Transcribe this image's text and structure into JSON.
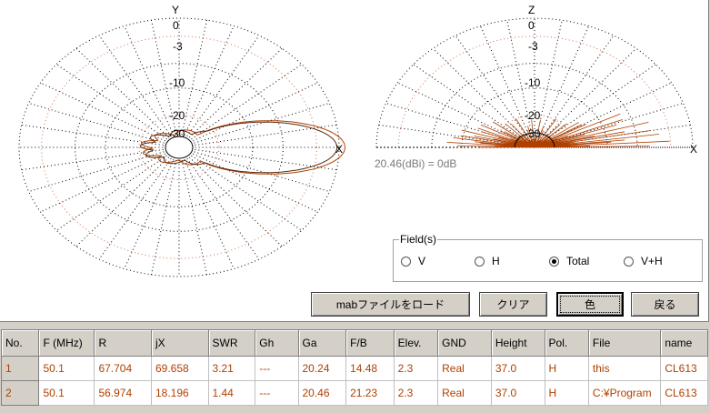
{
  "plots": {
    "left": {
      "axis_top": "Y",
      "axis_right": "X",
      "ticks": [
        "0",
        "-3",
        "-10",
        "-20",
        "-30"
      ]
    },
    "right": {
      "axis_top": "Z",
      "axis_right": "X",
      "ticks": [
        "0",
        "-3",
        "-10",
        "-20",
        "-30"
      ]
    },
    "reference_note": "20.46(dBi) = 0dB",
    "trace_color": "#b04000"
  },
  "field": {
    "legend": "Field(s)",
    "options": [
      {
        "label": "V",
        "selected": false
      },
      {
        "label": "H",
        "selected": false
      },
      {
        "label": "Total",
        "selected": true
      },
      {
        "label": "V+H",
        "selected": false
      }
    ]
  },
  "buttons": {
    "load": "mabファイルをロード",
    "clear": "クリア",
    "color": "色",
    "back": "戻る"
  },
  "table": {
    "columns": [
      "No.",
      "F (MHz)",
      "R",
      "jX",
      "SWR",
      "Gh",
      "Ga",
      "F/B",
      "Elev.",
      "GND",
      "Height",
      "Pol.",
      "File",
      "name"
    ],
    "rows": [
      [
        "1",
        "50.1",
        "67.704",
        "69.658",
        "3.21",
        "---",
        "20.24",
        "14.48",
        "2.3",
        "Real",
        "37.0",
        "H",
        "this",
        "CL613"
      ],
      [
        "2",
        "50.1",
        "56.974",
        "18.196",
        "1.44",
        "---",
        "20.46",
        "21.23",
        "2.3",
        "Real",
        "37.0",
        "H",
        "C:¥Program",
        "CL613"
      ]
    ]
  }
}
